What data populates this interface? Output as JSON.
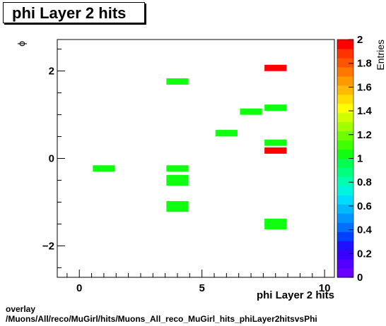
{
  "header": {
    "title": "phi Layer 2 hits"
  },
  "footer": {
    "line1": "overlay",
    "line2": "/Muons/All/reco/MuGirl/hits/Muons_All_reco_MuGirl_hits_phiLayer2hitsvsPhi"
  },
  "chart_data": {
    "type": "heatmap",
    "title": "phi Layer 2 hits",
    "xlabel": "phi Layer 2 hits",
    "ylabel": "ϕ",
    "zlabel": "Entries",
    "xlim": [
      -0.9,
      10.4
    ],
    "ylim": [
      -2.72,
      2.72
    ],
    "zlim": [
      0,
      2
    ],
    "x_ticks": [
      0,
      5,
      10
    ],
    "y_ticks": [
      -2,
      0,
      2
    ],
    "z_ticks": [
      0,
      0.2,
      0.4,
      0.6,
      0.8,
      1,
      1.2,
      1.4,
      1.6,
      1.8,
      2
    ],
    "x_tick_labels": [
      "0",
      "5",
      "10"
    ],
    "y_tick_labels": [
      "−2",
      "0",
      "2"
    ],
    "z_tick_labels": [
      "0",
      "0.2",
      "0.4",
      "0.6",
      "0.8",
      "1",
      "1.2",
      "1.4",
      "1.6",
      "1.8",
      "2"
    ],
    "colors": [
      "#6a00ff",
      "#5200ff",
      "#3a00ff",
      "#1f10ff",
      "#0040ff",
      "#0070ff",
      "#0095ff",
      "#00b8ff",
      "#00dcff",
      "#00f5e0",
      "#00ffb0",
      "#00ff80",
      "#00ff50",
      "#10ff10",
      "#40ff00",
      "#70ff00",
      "#a0ff00",
      "#d0ff00",
      "#ffff00",
      "#ffdd00",
      "#ffbb00",
      "#ff9900",
      "#ff7700",
      "#ff5500",
      "#ff3300",
      "#ff0000"
    ],
    "cells": [
      {
        "x": 1,
        "y": -0.23,
        "value": 1
      },
      {
        "x": 4,
        "y": 1.76,
        "value": 1
      },
      {
        "x": 4,
        "y": -0.23,
        "value": 1
      },
      {
        "x": 4,
        "y": -0.45,
        "value": 1
      },
      {
        "x": 4,
        "y": -0.55,
        "value": 1
      },
      {
        "x": 4,
        "y": -1.05,
        "value": 1
      },
      {
        "x": 4,
        "y": -1.15,
        "value": 1
      },
      {
        "x": 6,
        "y": 0.58,
        "value": 1
      },
      {
        "x": 7,
        "y": 1.07,
        "value": 1
      },
      {
        "x": 8,
        "y": 2.07,
        "value": 2
      },
      {
        "x": 8,
        "y": 1.16,
        "value": 1
      },
      {
        "x": 8,
        "y": 0.36,
        "value": 1
      },
      {
        "x": 8,
        "y": 0.18,
        "value": 2
      },
      {
        "x": 8,
        "y": -1.45,
        "value": 1
      },
      {
        "x": 8,
        "y": -1.55,
        "value": 1
      }
    ]
  }
}
